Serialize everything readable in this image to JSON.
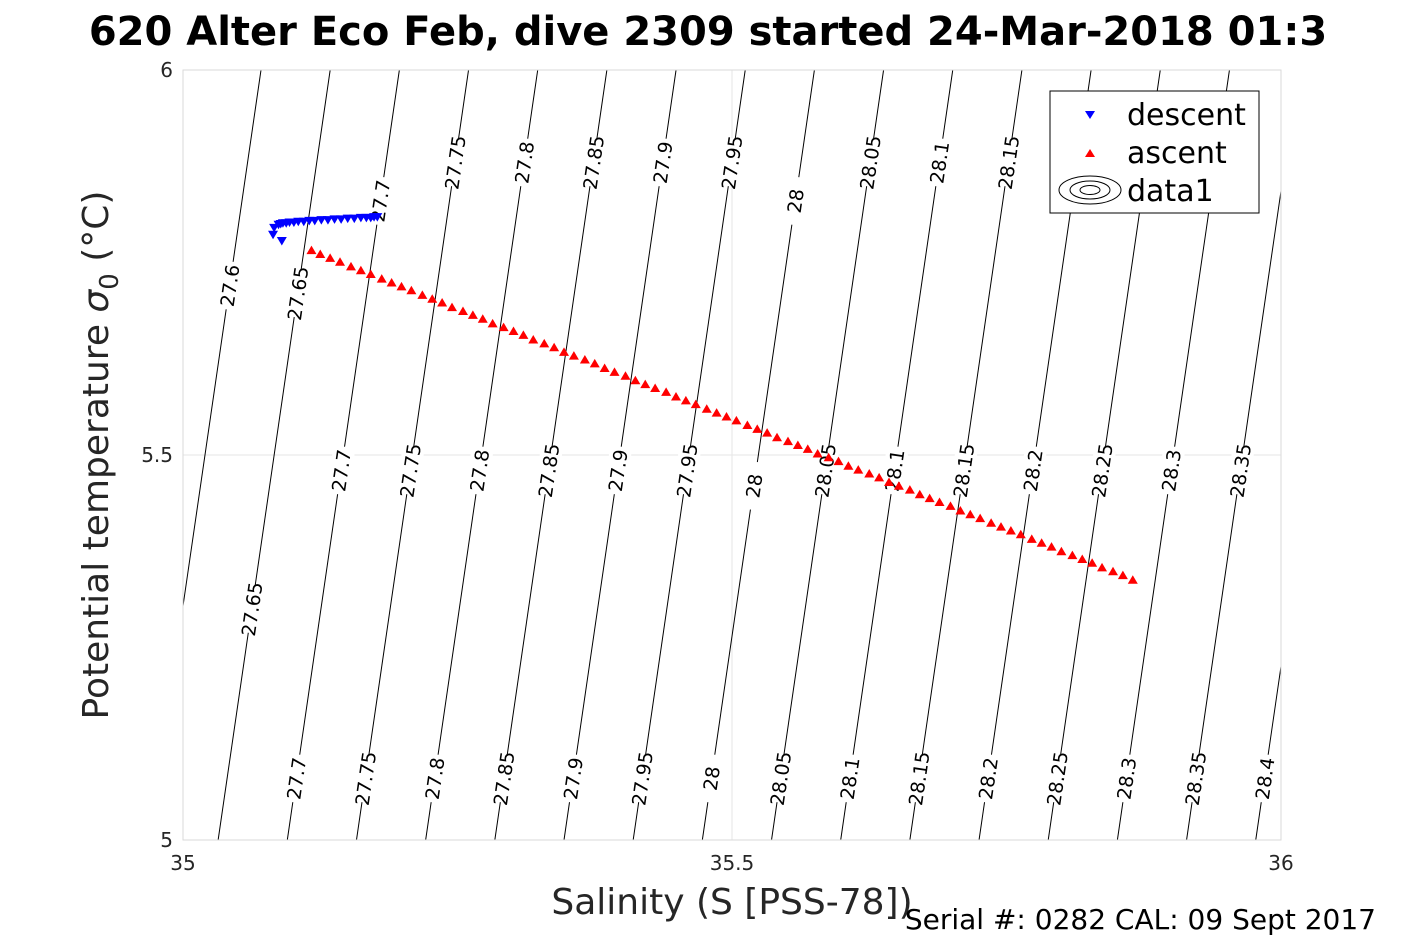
{
  "chart_data": {
    "type": "scatter",
    "title": "620 Alter Eco Feb, dive 2309 started 24-Mar-2018 01:3",
    "xlabel": "Salinity (S [PSS-78])",
    "ylabel": "Potential temperature σ₀ (°C)",
    "ylabel_main": "Potential temperature",
    "ylabel_symbol": "σ",
    "ylabel_subscript": "0",
    "ylabel_unit": "(°C)",
    "xlim": [
      35,
      36
    ],
    "ylim": [
      5,
      6
    ],
    "xticks": [
      "35",
      "35.5",
      "36"
    ],
    "yticks": [
      "5",
      "5.5",
      "6"
    ],
    "grid": true,
    "legend_position": "top-right",
    "series": [
      {
        "name": "descent",
        "marker": "triangle-down",
        "color": "#0000ff",
        "x": [
          35.087,
          35.089,
          35.091,
          35.094,
          35.097,
          35.101,
          35.105,
          35.11,
          35.115,
          35.12,
          35.126,
          35.132,
          35.138,
          35.144,
          35.15,
          35.156,
          35.162,
          35.167,
          35.171,
          35.174,
          35.177,
          35.082,
          35.09,
          35.083
        ],
        "y": [
          5.799,
          5.8,
          5.801,
          5.801,
          5.802,
          5.802,
          5.803,
          5.803,
          5.804,
          5.804,
          5.805,
          5.805,
          5.806,
          5.806,
          5.807,
          5.807,
          5.808,
          5.808,
          5.808,
          5.809,
          5.809,
          5.786,
          5.778,
          5.795
        ]
      },
      {
        "name": "ascent",
        "marker": "triangle-up",
        "color": "#ff0000",
        "x": [
          35.117,
          35.125,
          35.134,
          35.143,
          35.153,
          35.162,
          35.171,
          35.181,
          35.19,
          35.199,
          35.208,
          35.218,
          35.227,
          35.236,
          35.245,
          35.255,
          35.264,
          35.273,
          35.282,
          35.292,
          35.301,
          35.31,
          35.319,
          35.329,
          35.338,
          35.347,
          35.356,
          35.366,
          35.375,
          35.384,
          35.393,
          35.403,
          35.412,
          35.421,
          35.43,
          35.44,
          35.449,
          35.458,
          35.467,
          35.477,
          35.486,
          35.495,
          35.504,
          35.514,
          35.523,
          35.532,
          35.541,
          35.551,
          35.56,
          35.569,
          35.578,
          35.588,
          35.597,
          35.606,
          35.615,
          35.625,
          35.634,
          35.643,
          35.652,
          35.662,
          35.671,
          35.68,
          35.689,
          35.699,
          35.708,
          35.717,
          35.726,
          35.736,
          35.745,
          35.754,
          35.763,
          35.773,
          35.782,
          35.791,
          35.8,
          35.81,
          35.819,
          35.828,
          35.837,
          35.847,
          35.856,
          35.865
        ],
        "y": [
          5.766,
          5.761,
          5.756,
          5.751,
          5.745,
          5.74,
          5.735,
          5.729,
          5.724,
          5.719,
          5.714,
          5.708,
          5.703,
          5.698,
          5.692,
          5.687,
          5.682,
          5.677,
          5.671,
          5.666,
          5.661,
          5.656,
          5.65,
          5.645,
          5.64,
          5.634,
          5.629,
          5.624,
          5.619,
          5.613,
          5.608,
          5.603,
          5.597,
          5.592,
          5.587,
          5.582,
          5.576,
          5.571,
          5.566,
          5.56,
          5.555,
          5.55,
          5.545,
          5.539,
          5.534,
          5.529,
          5.523,
          5.518,
          5.513,
          5.508,
          5.502,
          5.497,
          5.492,
          5.486,
          5.481,
          5.476,
          5.471,
          5.465,
          5.46,
          5.455,
          5.449,
          5.444,
          5.439,
          5.434,
          5.428,
          5.423,
          5.418,
          5.412,
          5.407,
          5.402,
          5.397,
          5.391,
          5.386,
          5.381,
          5.375,
          5.37,
          5.365,
          5.36,
          5.354,
          5.349,
          5.344,
          5.338
        ]
      },
      {
        "name": "data1",
        "marker": "contour",
        "color": "#000000"
      }
    ],
    "contours": [
      {
        "x0": 34.969,
        "slope": 9.8,
        "label": "27.6",
        "labels_at_y": [
          5.72
        ]
      },
      {
        "x0": 35.032,
        "slope": 9.8,
        "label": "27.65",
        "labels_at_y": [
          5.3,
          5.71
        ]
      },
      {
        "x0": 35.095,
        "slope": 9.8,
        "label": "27.7",
        "labels_at_y": [
          5.08,
          5.48,
          5.83
        ]
      },
      {
        "x0": 35.158,
        "slope": 9.8,
        "label": "27.75",
        "labels_at_y": [
          5.08,
          5.48,
          5.88
        ]
      },
      {
        "x0": 35.221,
        "slope": 9.8,
        "label": "27.8",
        "labels_at_y": [
          5.08,
          5.48,
          5.88
        ]
      },
      {
        "x0": 35.284,
        "slope": 9.8,
        "label": "27.85",
        "labels_at_y": [
          5.08,
          5.48,
          5.88
        ]
      },
      {
        "x0": 35.347,
        "slope": 9.8,
        "label": "27.9",
        "labels_at_y": [
          5.08,
          5.48,
          5.88
        ]
      },
      {
        "x0": 35.41,
        "slope": 9.8,
        "label": "27.95",
        "labels_at_y": [
          5.08,
          5.48,
          5.88
        ]
      },
      {
        "x0": 35.473,
        "slope": 9.8,
        "label": "28",
        "labels_at_y": [
          5.08,
          5.46,
          5.83
        ]
      },
      {
        "x0": 35.536,
        "slope": 9.8,
        "label": "28.05",
        "labels_at_y": [
          5.08,
          5.48,
          5.88
        ]
      },
      {
        "x0": 35.599,
        "slope": 9.8,
        "label": "28.1",
        "labels_at_y": [
          5.08,
          5.48,
          5.88
        ]
      },
      {
        "x0": 35.662,
        "slope": 9.8,
        "label": "28.15",
        "labels_at_y": [
          5.08,
          5.48,
          5.88
        ]
      },
      {
        "x0": 35.725,
        "slope": 9.8,
        "label": "28.2",
        "labels_at_y": [
          5.08,
          5.48
        ]
      },
      {
        "x0": 35.788,
        "slope": 9.8,
        "label": "28.25",
        "labels_at_y": [
          5.08,
          5.48
        ]
      },
      {
        "x0": 35.851,
        "slope": 9.8,
        "label": "28.3",
        "labels_at_y": [
          5.08,
          5.48
        ]
      },
      {
        "x0": 35.914,
        "slope": 9.8,
        "label": "28.35",
        "labels_at_y": [
          5.08,
          5.48,
          5.88
        ]
      },
      {
        "x0": 35.977,
        "slope": 9.8,
        "label": "28.4",
        "labels_at_y": [
          5.08,
          5.48
        ]
      }
    ]
  },
  "footer": {
    "serial_text": "Serial #: 0282  CAL: 09 Sept 2017"
  }
}
